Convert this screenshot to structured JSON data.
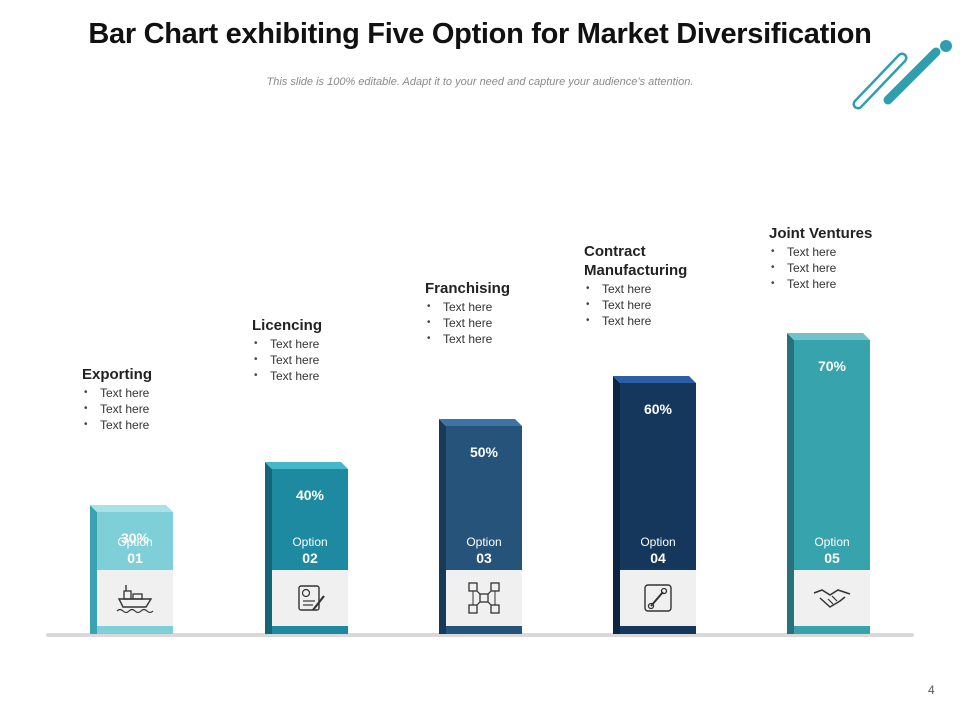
{
  "title": "Bar Chart exhibiting Five Option for Market Diversification",
  "subtitle": "This slide is 100% editable. Adapt it to your need and capture your audience’s attention.",
  "page_number": "4",
  "option_word": "Option",
  "colors": {
    "bar_front": [
      "#7fcfd9",
      "#1d8aa1",
      "#25537a",
      "#14375b",
      "#37a3ad"
    ],
    "bar_side": [
      "#3aa3b2",
      "#126678",
      "#173a59",
      "#0c2540",
      "#25747d"
    ],
    "bar_top": [
      "#a9e1e8",
      "#46b7c8",
      "#3d74a5",
      "#2a5fa6",
      "#6fc4cb"
    ],
    "icon_box": "#f0f0f0",
    "baseline": "#d9d9d9"
  },
  "chart_data": {
    "type": "bar",
    "title": "Bar Chart exhibiting Five Option for Market Diversification",
    "xlabel": "",
    "ylabel": "",
    "ylim": [
      0,
      100
    ],
    "categories": [
      "Exporting",
      "Licencing",
      "Franchising",
      "Contract Manufacturing",
      "Joint Ventures"
    ],
    "values": [
      30,
      40,
      50,
      60,
      70
    ],
    "value_labels": [
      "30%",
      "40%",
      "50%",
      "60%",
      "70%"
    ],
    "option_numbers": [
      "01",
      "02",
      "03",
      "04",
      "05"
    ],
    "icons": [
      "ship-icon",
      "document-checklist-icon",
      "network-icon",
      "robot-arm-icon",
      "handshake-icon"
    ],
    "bullets": [
      [
        "Text here",
        "Text here",
        "Text here"
      ],
      [
        "Text here",
        "Text here",
        "Text here"
      ],
      [
        "Text here",
        "Text here",
        "Text here"
      ],
      [
        "Text here",
        "Text here",
        "Text here"
      ],
      [
        "Text here",
        "Text here",
        "Text here"
      ]
    ]
  }
}
